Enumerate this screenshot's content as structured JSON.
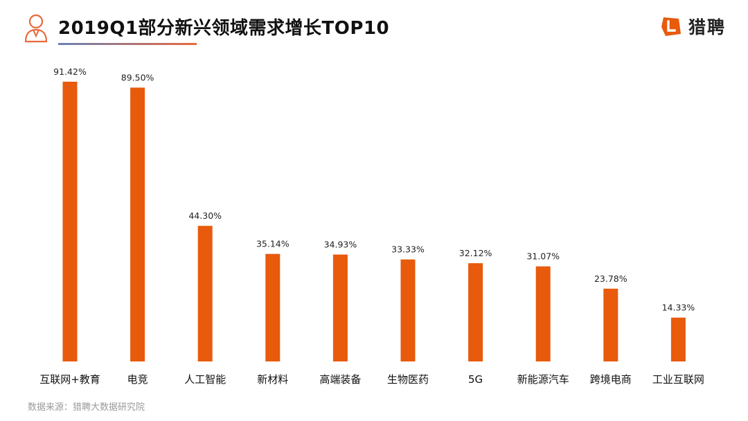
{
  "header": {
    "title": "2019Q1部分新兴领域需求增长TOP10",
    "brand_name": "猎聘",
    "accent_color": "#E85A0C",
    "underline_color_start": "#6A82B8",
    "underline_color_end": "#E8683A"
  },
  "footer": {
    "source": "数据来源：猎聘大数据研究院"
  },
  "chart_data": {
    "type": "bar",
    "title": "2019Q1部分新兴领域需求增长TOP10",
    "xlabel": "",
    "ylabel": "",
    "grid": false,
    "legend": "none",
    "bar_color": "#E85A0C",
    "categories": [
      "互联网+教育",
      "电竞",
      "人工智能",
      "新材料",
      "高端装备",
      "生物医药",
      "5G",
      "新能源汽车",
      "跨境电商",
      "工业互联网"
    ],
    "values": [
      91.42,
      89.5,
      44.3,
      35.14,
      34.93,
      33.33,
      32.12,
      31.07,
      23.78,
      14.33
    ],
    "value_labels": [
      "91.42%",
      "89.50%",
      "44.30%",
      "35.14%",
      "34.93%",
      "33.33%",
      "32.12%",
      "31.07%",
      "23.78%",
      "14.33%"
    ],
    "ylim": [
      0,
      100
    ]
  }
}
